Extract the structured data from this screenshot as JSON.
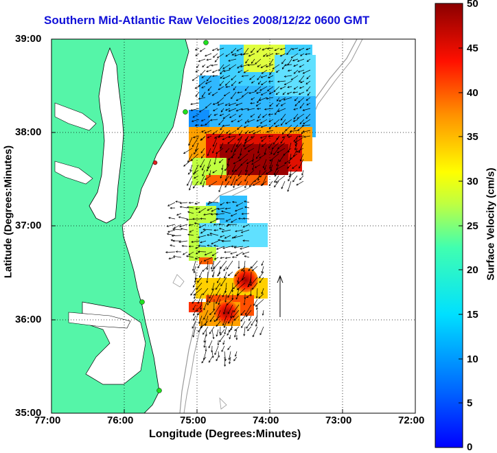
{
  "title": "Southern Mid-Atlantic Raw Velocities 2008/12/22 0600 GMT",
  "map": {
    "xlabel": "Longitude (Degrees:Minutes)",
    "ylabel": "Latitude (Degrees:Minutes)",
    "x_ticks": [
      "77:00",
      "76:00",
      "75:00",
      "74:00",
      "73:00",
      "72:00"
    ],
    "y_ticks": [
      "39:00",
      "38:00",
      "37:00",
      "36:00",
      "35:00"
    ],
    "lon_range": [
      -77,
      -72
    ],
    "lat_range": [
      35,
      39
    ],
    "land_color": "#55f5a8",
    "grid": "dotted"
  },
  "colorbar": {
    "label": "Surface Velocity (cm/s)",
    "ticks": [
      "50",
      "45",
      "40",
      "35",
      "30",
      "25",
      "20",
      "15",
      "10",
      "5",
      "0"
    ],
    "range": [
      0,
      50
    ],
    "colormap": "jet"
  }
}
